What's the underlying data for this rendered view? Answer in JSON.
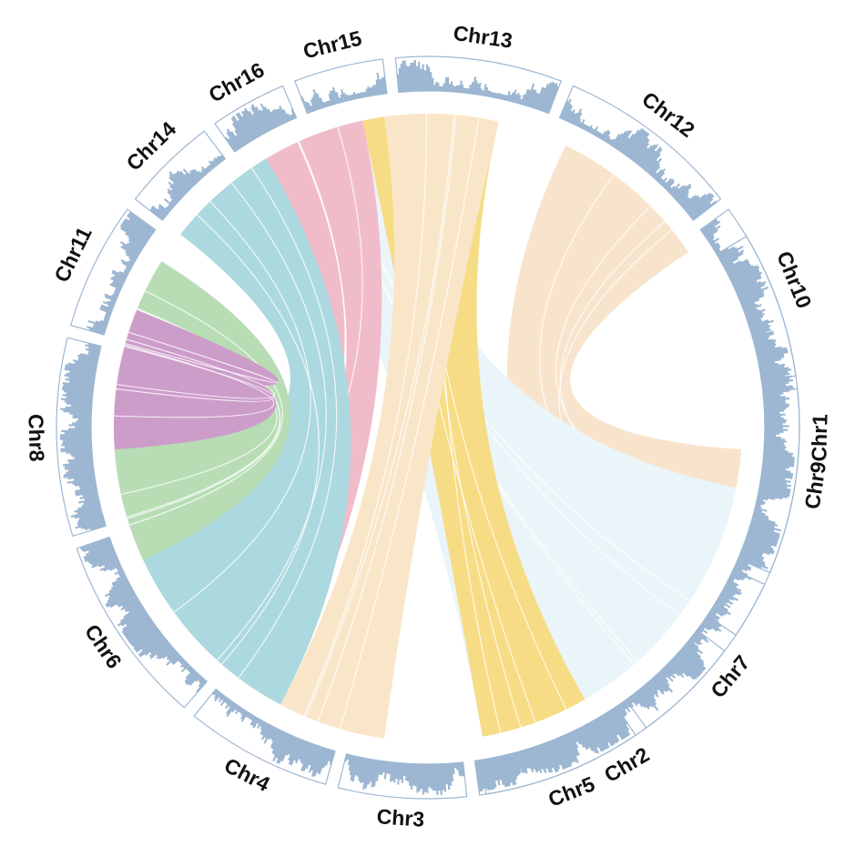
{
  "chromosomes": [
    {
      "name": "Chr1"
    },
    {
      "name": "Chr2"
    },
    {
      "name": "Chr3"
    },
    {
      "name": "Chr4"
    },
    {
      "name": "Chr6"
    },
    {
      "name": "Chr8"
    },
    {
      "name": "Chr11"
    },
    {
      "name": "Chr14"
    },
    {
      "name": "Chr16"
    },
    {
      "name": "Chr15"
    },
    {
      "name": "Chr13"
    },
    {
      "name": "Chr12"
    },
    {
      "name": "Chr10"
    },
    {
      "name": "Chr9"
    },
    {
      "name": "Chr7"
    },
    {
      "name": "Chr5"
    }
  ],
  "links": [
    {
      "from": "Chr5",
      "to": "Chr1",
      "color": "#f8e4cc"
    },
    {
      "from": "Chr7",
      "to": "Chr2",
      "color": "#eaf5fa"
    },
    {
      "from": "Chr9",
      "to": "Chr3",
      "color": "#f6dc84"
    },
    {
      "from": "Chr10",
      "to": "Chr4",
      "color": "#f9e6c8"
    },
    {
      "from": "Chr12",
      "to": "Chr6",
      "color": "#f1bcca"
    },
    {
      "from": "Chr13",
      "to": "Chr8",
      "color": "#acd9df"
    },
    {
      "from": "Chr15",
      "to": "Chr11",
      "color": "#b8ddb5"
    },
    {
      "from": "Chr16",
      "to": "Chr14",
      "color": "#cd9dca"
    }
  ],
  "colors": {
    "track": "#9db7d2",
    "label": "#111111",
    "background": "#ffffff"
  }
}
